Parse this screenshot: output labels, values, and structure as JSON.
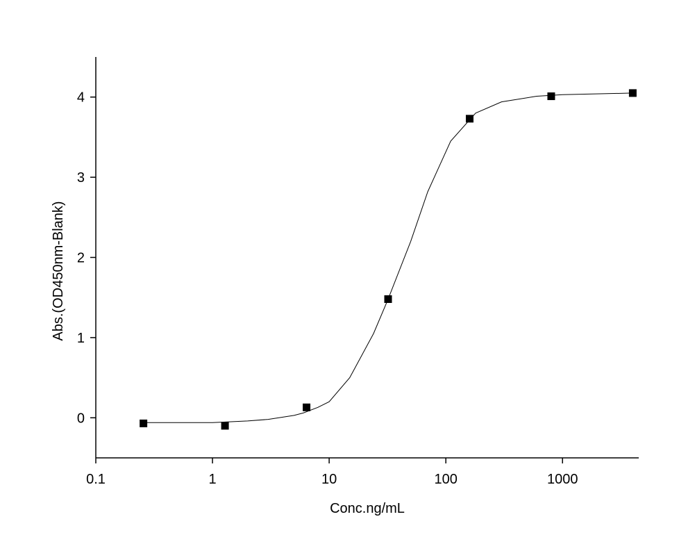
{
  "chart_data": {
    "type": "scatter",
    "x_label": "Conc.ng/mL",
    "y_label": "Abs.(OD450nm-Blank)",
    "x_log": true,
    "xlim": [
      0.1,
      4500
    ],
    "xticks": [
      0.1,
      1,
      10,
      100,
      1000
    ],
    "ylim": [
      -0.5,
      4.5
    ],
    "yticks": [
      0,
      1,
      2,
      3,
      4
    ],
    "series": [
      {
        "style": "markers",
        "color": "#000000",
        "x": [
          0.256,
          1.28,
          6.4,
          32,
          160,
          800,
          4000
        ],
        "values": [
          -0.07,
          -0.1,
          0.13,
          1.48,
          3.73,
          4.01,
          4.05
        ]
      },
      {
        "style": "line",
        "color": "#000000",
        "x": [
          0.256,
          1,
          2,
          3,
          5,
          6,
          8,
          10,
          15,
          24,
          32,
          50,
          70,
          110,
          180,
          300,
          600,
          1000,
          4000
        ],
        "values": [
          -0.06,
          -0.06,
          -0.04,
          -0.02,
          0.03,
          0.06,
          0.13,
          0.2,
          0.5,
          1.05,
          1.48,
          2.2,
          2.82,
          3.45,
          3.8,
          3.94,
          4.01,
          4.03,
          4.05
        ]
      }
    ]
  }
}
